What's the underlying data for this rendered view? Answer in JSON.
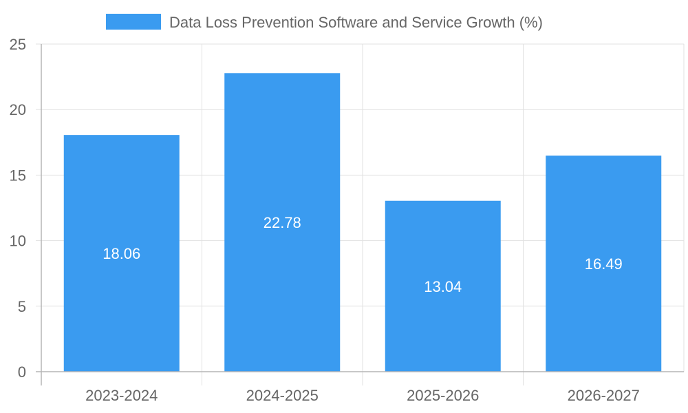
{
  "chart_data": {
    "type": "bar",
    "categories": [
      "2023-2024",
      "2024-2025",
      "2025-2026",
      "2026-2027"
    ],
    "series": [
      {
        "name": "Data Loss Prevention Software and Service Growth (%)",
        "values": [
          18.06,
          22.78,
          13.04,
          16.49
        ]
      }
    ],
    "value_labels": [
      "18.06",
      "22.78",
      "13.04",
      "16.49"
    ],
    "y_ticks": [
      "0",
      "5",
      "10",
      "15",
      "20",
      "25"
    ],
    "ylim": [
      0,
      25
    ],
    "ytick_step": 5,
    "grid": true,
    "legend_position": "top",
    "title": "",
    "xlabel": "",
    "ylabel": "",
    "colors": {
      "bar": "#3a9bf0",
      "grid": "#e1e1e1",
      "axis": "#b5b5b5",
      "text": "#666666",
      "value_text": "#ffffff"
    }
  }
}
